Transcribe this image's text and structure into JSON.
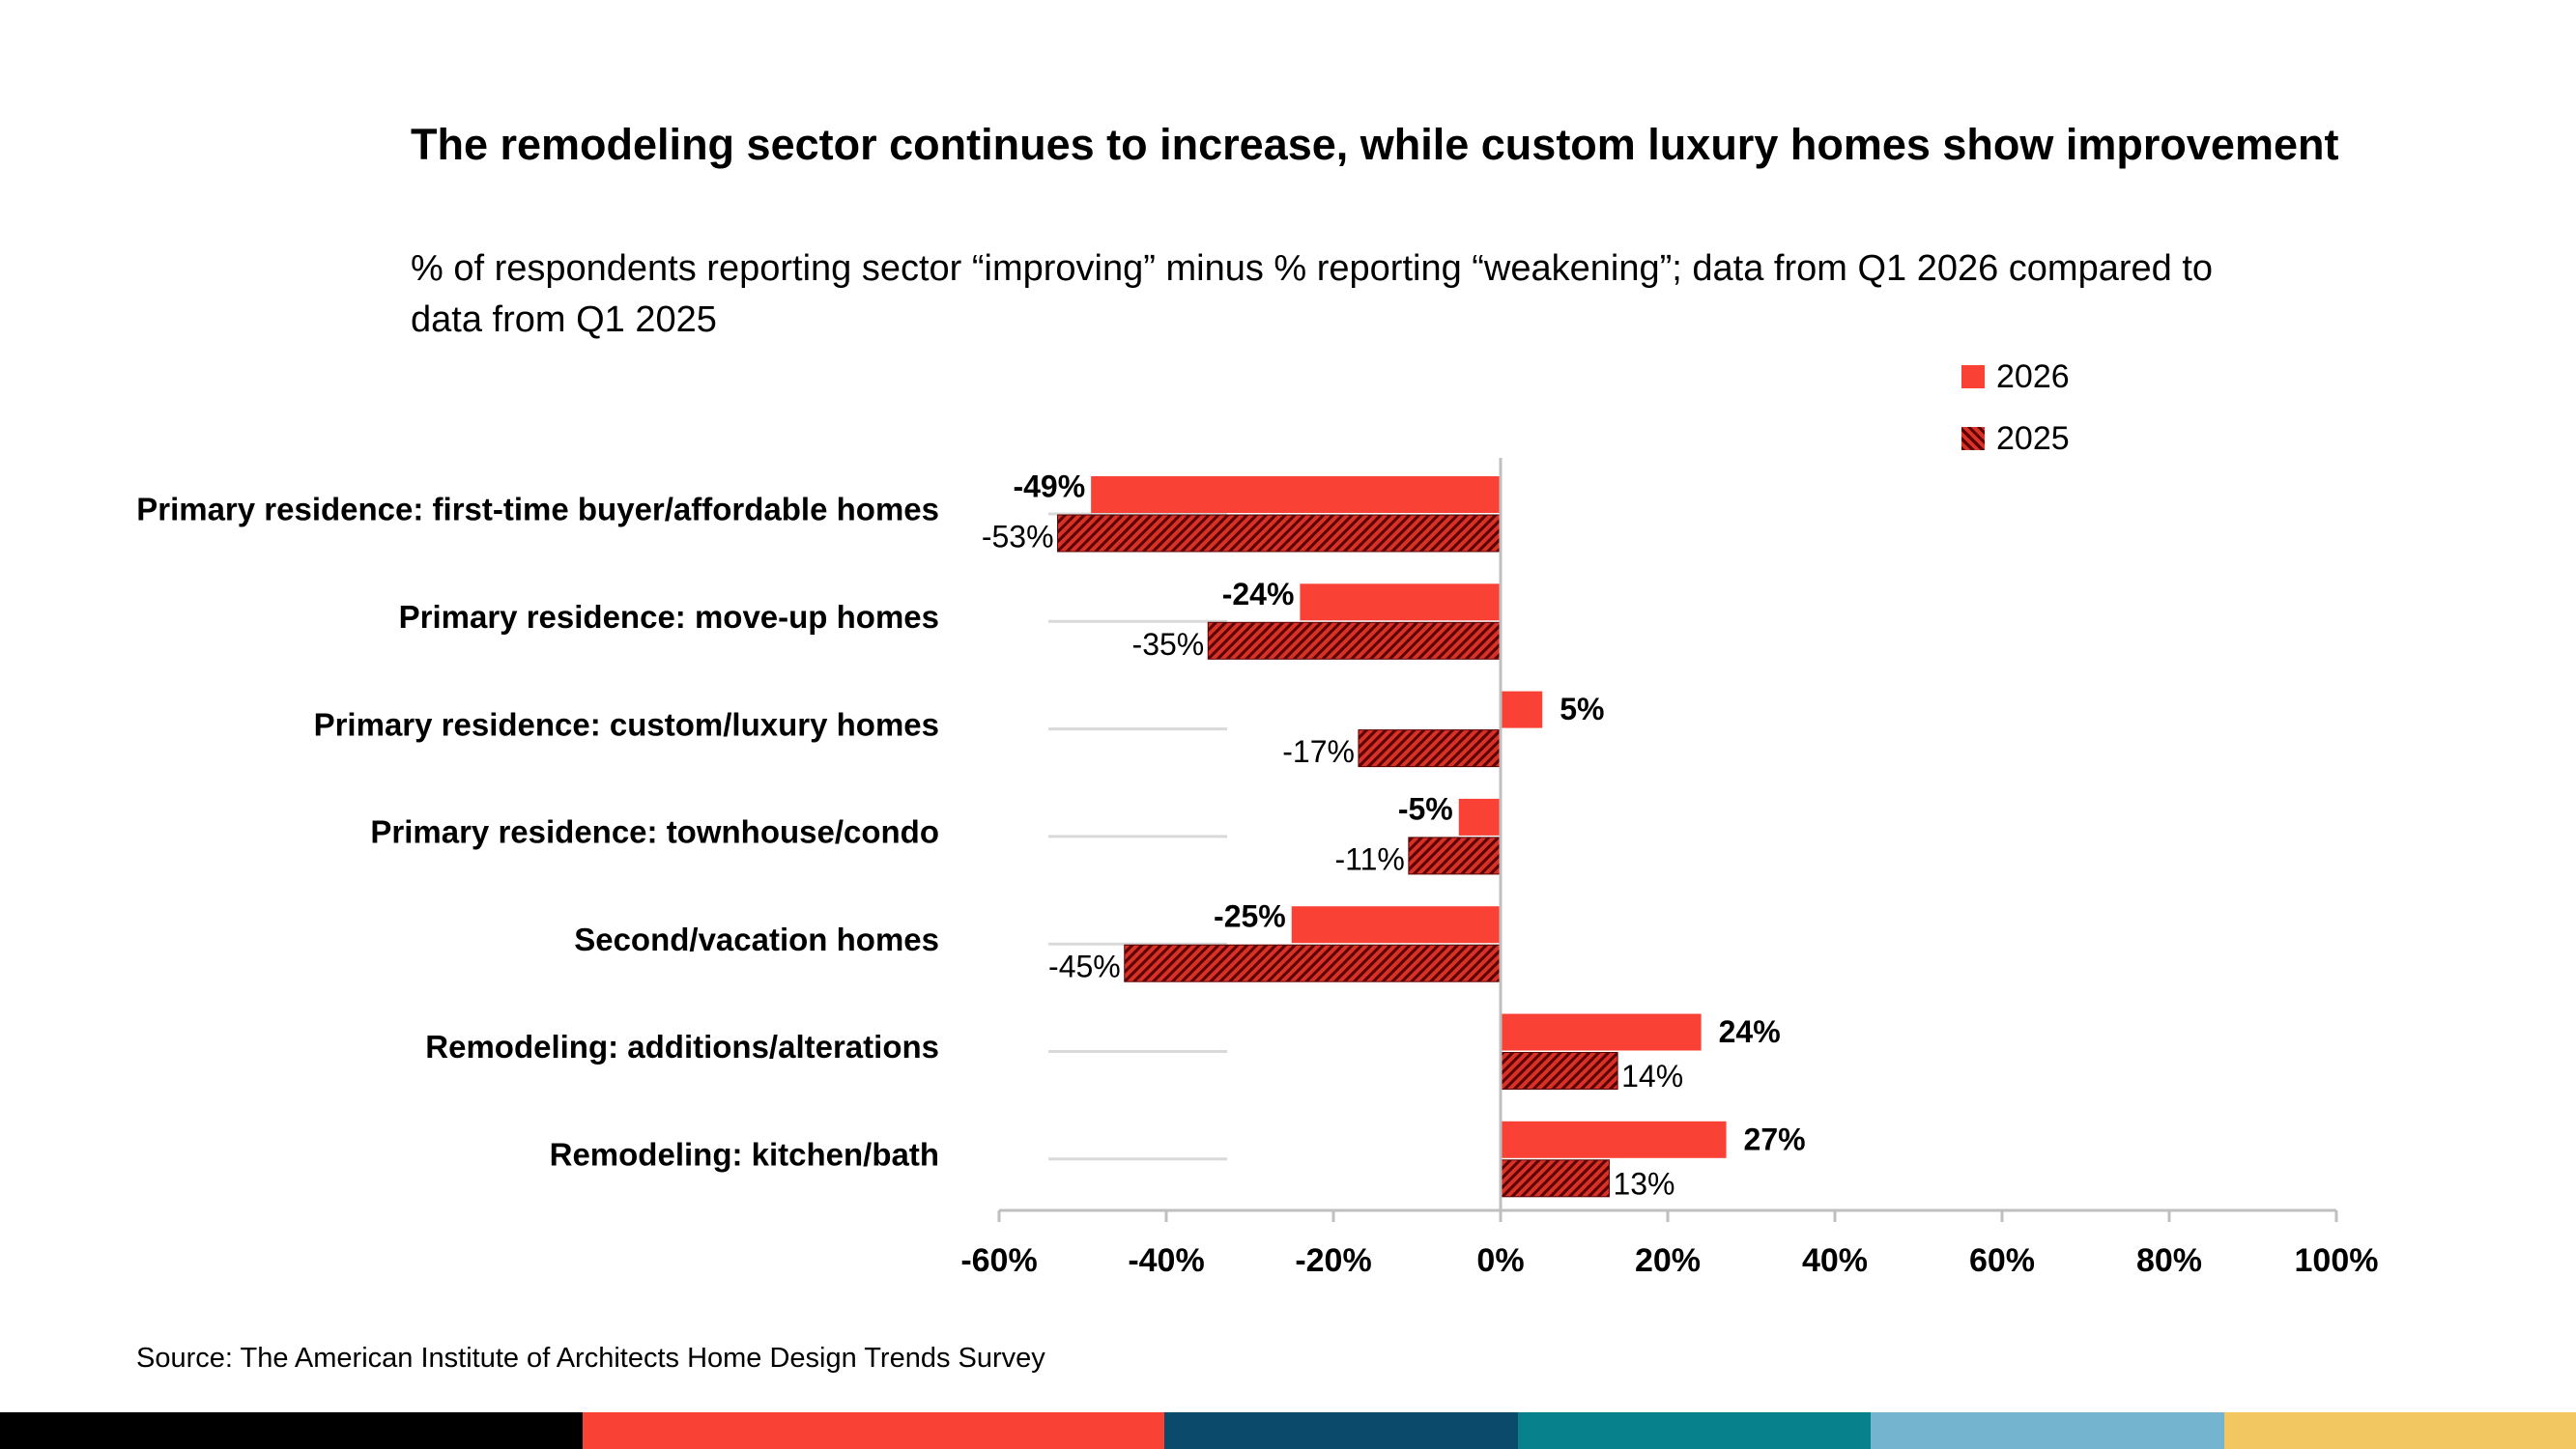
{
  "title": "The remodeling sector continues to increase, while custom luxury homes show improvement",
  "subtitle": "% of respondents reporting sector “improving” minus % reporting “weakening”; data from Q1 2026 compared to data from Q1 2025",
  "source": "Source: The American Institute of Architects Home Design Trends Survey",
  "colors": {
    "series_2026": "#f94235",
    "series_2025_hatch_dark": "#5a0000",
    "series_2025_hatch_light": "#d63228",
    "footer": [
      "#000000",
      "#f94235",
      "#0b4a6a",
      "#07828c",
      "#74b4cf",
      "#f2c660"
    ]
  },
  "chart_data": {
    "type": "bar",
    "orientation": "horizontal",
    "categories": [
      "Primary residence: first-time buyer/affordable homes",
      "Primary residence: move-up homes",
      "Primary residence: custom/luxury homes",
      "Primary residence: townhouse/condo",
      "Second/vacation homes",
      "Remodeling: additions/alterations",
      "Remodeling: kitchen/bath"
    ],
    "series": [
      {
        "name": "2026",
        "values": [
          -49,
          -24,
          5,
          -5,
          -25,
          24,
          27
        ],
        "labels": [
          "-49%",
          "-24%",
          "5%",
          "-5%",
          "-25%",
          "24%",
          "27%"
        ]
      },
      {
        "name": "2025",
        "values": [
          -53,
          -35,
          -17,
          -11,
          -45,
          14,
          13
        ],
        "labels": [
          "-53%",
          "-35%",
          "-17%",
          "-11%",
          "-45%",
          "14%",
          "13%"
        ]
      }
    ],
    "xlim": [
      -60,
      100
    ],
    "xticks": [
      -60,
      -40,
      -20,
      0,
      20,
      40,
      60,
      80,
      100
    ],
    "xtick_labels": [
      "-60%",
      "-40%",
      "-20%",
      "0%",
      "20%",
      "40%",
      "60%",
      "80%",
      "100%"
    ],
    "legend": [
      "2026",
      "2025"
    ],
    "legend_position": "top-right",
    "grid": false
  }
}
